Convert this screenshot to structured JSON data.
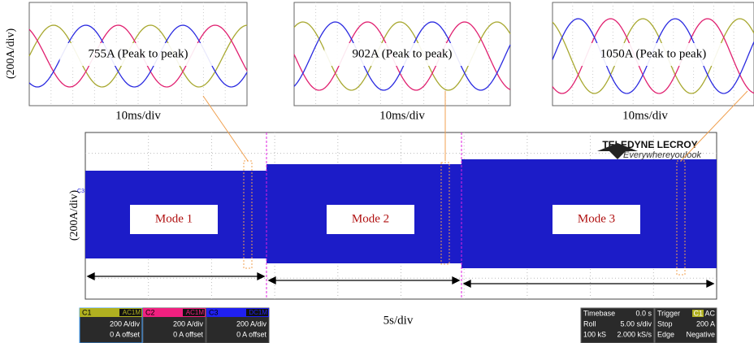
{
  "insets": [
    {
      "label": "755A (Peak to peak)",
      "timescale": "10ms/div"
    },
    {
      "label": "902A (Peak to peak)",
      "timescale": "10ms/div"
    },
    {
      "label": "1050A (Peak to peak)",
      "timescale": "10ms/div"
    }
  ],
  "inset_scale": "(200A/div)",
  "main": {
    "y_scale": "(200A/div)",
    "channel_marker": "C3",
    "modes": [
      "Mode 1",
      "Mode 2",
      "Mode 3"
    ],
    "time_scale": "5s/div",
    "brand": "TELEDYNE LECROY",
    "tagline": "Everywhereyoulook"
  },
  "channels": [
    {
      "name": "C1",
      "coupling": "AC1M",
      "scale": "200 A/div",
      "offset": "0 A offset"
    },
    {
      "name": "C2",
      "coupling": "AC1M",
      "scale": "200 A/div",
      "offset": "0 A offset"
    },
    {
      "name": "C3",
      "coupling": "DC1M",
      "scale": "200 A/div",
      "offset": "0 A offset"
    }
  ],
  "timebase": {
    "title": "Timebase",
    "delay": "0.0 s",
    "mode": "Roll",
    "scale": "5.00 s/div",
    "samples": "100 kS",
    "rate": "2.000 kS/s"
  },
  "trigger": {
    "title": "Trigger",
    "source": "C1",
    "coupling": "AC",
    "state": "Stop",
    "level": "200 A",
    "type": "Edge",
    "slope": "Negative"
  }
}
